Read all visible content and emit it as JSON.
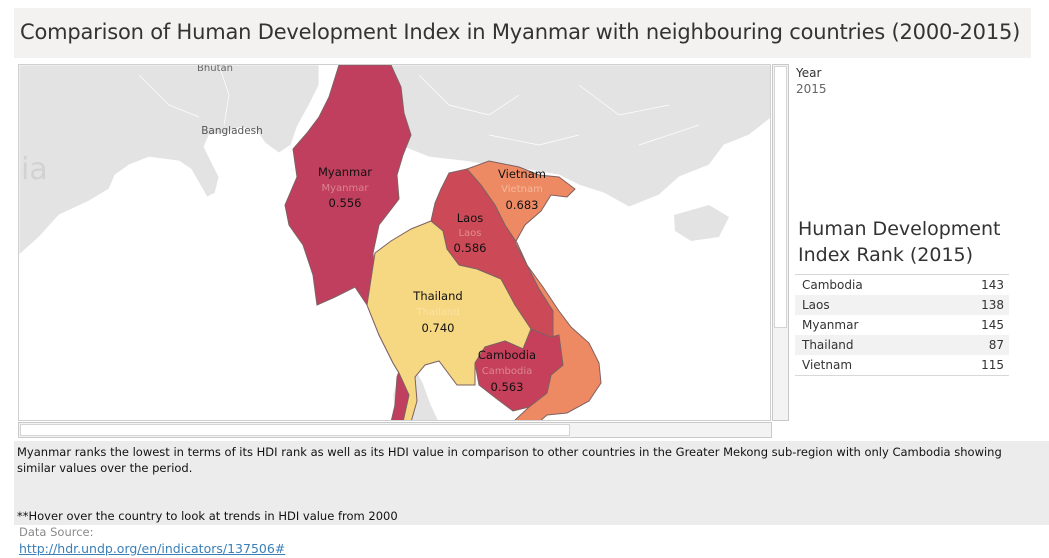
{
  "title": "Comparison of Human Development Index in Myanmar with neighbouring countries (2000-2015)",
  "map": {
    "background_labels": [
      {
        "name": "Bhutan"
      },
      {
        "name": "Bangladesh"
      },
      {
        "name": "ia"
      }
    ],
    "countries": [
      {
        "name": "Myanmar",
        "sub": "Myanmar",
        "value": "0.556",
        "color": "#c13f5e"
      },
      {
        "name": "Vietnam",
        "sub": "Vietnam",
        "value": "0.683",
        "color": "#ee8a63"
      },
      {
        "name": "Laos",
        "sub": "Laos",
        "value": "0.586",
        "color": "#cc4a58"
      },
      {
        "name": "Thailand",
        "sub": "Thailand",
        "value": "0.740",
        "color": "#f6d782"
      },
      {
        "name": "Cambodia",
        "sub": "Cambodia",
        "value": "0.563",
        "color": "#c6405c"
      }
    ],
    "colors": {
      "land": "#e3e3e3",
      "sea": "#ffffff",
      "border": "#cfcfcf"
    }
  },
  "filter": {
    "label": "Year",
    "value": "2015"
  },
  "rank": {
    "title": "Human Development Index Rank (2015)",
    "rows": [
      {
        "country": "Cambodia",
        "rank": "143"
      },
      {
        "country": "Laos",
        "rank": "138"
      },
      {
        "country": "Myanmar",
        "rank": "145"
      },
      {
        "country": "Thailand",
        "rank": "87"
      },
      {
        "country": "Vietnam",
        "rank": "115"
      }
    ]
  },
  "note": {
    "text": "Myanmar ranks the lowest in terms of its HDI rank as well as its HDI value in comparison to other countries in the Greater Mekong sub-region with only Cambodia showing similar values over the period.",
    "hover": "**Hover over the country to look at trends in HDI value from 2000"
  },
  "source": {
    "label": "Data Source:",
    "link": "http://hdr.undp.org/en/indicators/137506#"
  }
}
